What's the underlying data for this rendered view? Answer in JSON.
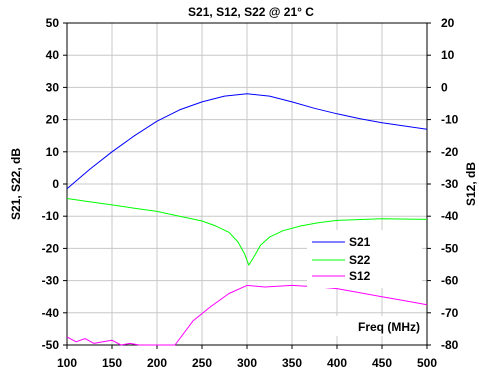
{
  "chart_data": {
    "type": "line",
    "title": "S21, S12, S22 @ 21° C",
    "xlabel": "Freq (MHz)",
    "ylabel": "S21, S22, dB",
    "y2label": "S12, dB",
    "xlim": [
      100,
      500
    ],
    "ylim": [
      -50,
      50
    ],
    "y2lim": [
      -80,
      20
    ],
    "x_ticks": [
      "100",
      "150",
      "200",
      "250",
      "300",
      "350",
      "400",
      "450",
      "500"
    ],
    "y_ticks": [
      "-50",
      "-40",
      "-30",
      "-20",
      "-10",
      "0",
      "10",
      "20",
      "30",
      "40",
      "50"
    ],
    "y2_ticks": [
      "-80",
      "-70",
      "-60",
      "-50",
      "-40",
      "-30",
      "-20",
      "-10",
      "0",
      "10",
      "20"
    ],
    "grid": true,
    "legend_position": "lower-right",
    "series": [
      {
        "name": "S21",
        "color": "#0000ff",
        "axis": "left",
        "x": [
          100,
          125,
          150,
          175,
          200,
          225,
          250,
          275,
          300,
          325,
          350,
          375,
          400,
          425,
          450,
          475,
          500
        ],
        "y": [
          -1.5,
          4.5,
          10,
          15,
          19.5,
          23,
          25.5,
          27.3,
          28,
          27.3,
          25.5,
          23.5,
          21.8,
          20.3,
          19,
          18,
          17
        ]
      },
      {
        "name": "S22",
        "color": "#00ff00",
        "axis": "left",
        "x": [
          100,
          125,
          150,
          175,
          200,
          225,
          250,
          265,
          280,
          290,
          297,
          302,
          308,
          315,
          325,
          340,
          360,
          380,
          400,
          450,
          500
        ],
        "y": [
          -4.5,
          -5.5,
          -6.5,
          -7.5,
          -8.5,
          -10,
          -11.5,
          -13,
          -15,
          -18,
          -21.5,
          -25.2,
          -22.5,
          -19,
          -16.5,
          -14.5,
          -13,
          -12,
          -11.3,
          -10.8,
          -11
        ]
      },
      {
        "name": "S12",
        "color": "#ff00ff",
        "axis": "right",
        "x": [
          100,
          110,
          120,
          130,
          140,
          150,
          160,
          170,
          180,
          220,
          240,
          260,
          280,
          300,
          320,
          350,
          380,
          400,
          430,
          450,
          470,
          500
        ],
        "y": [
          -77.5,
          -79,
          -78,
          -79.5,
          -79,
          -78.5,
          -80,
          -79.5,
          -80,
          -80,
          -72.5,
          -68,
          -64,
          -61.5,
          -62,
          -61.5,
          -62,
          -62.5,
          -64,
          -65,
          -66,
          -67.5
        ]
      }
    ]
  }
}
